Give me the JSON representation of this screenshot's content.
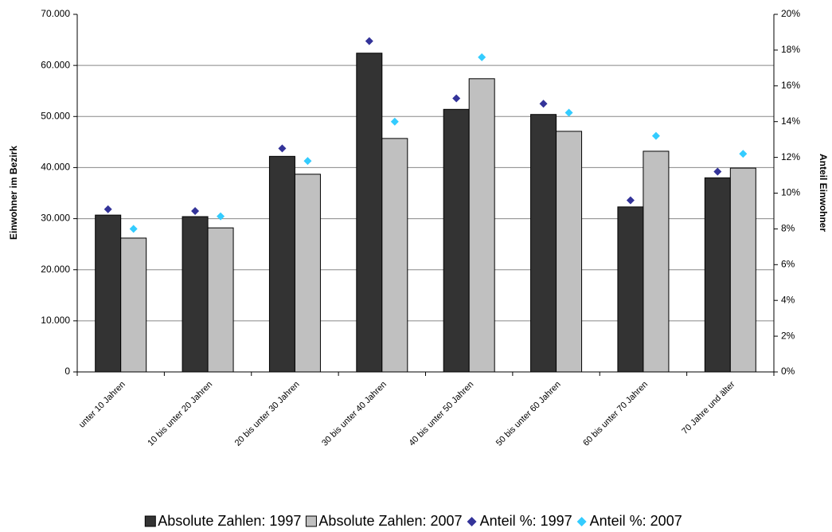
{
  "chart_data": {
    "type": "bar",
    "categories": [
      "unter 10 Jahren",
      "10 bis unter 20 Jahren",
      "20 bis unter 30 Jahren",
      "30 bis unter 40 Jahren",
      "40 bis unter 50 Jahren",
      "50 bis unter 60 Jahren",
      "60 bis unter 70 Jahren",
      "70 Jahre und älter"
    ],
    "series": [
      {
        "name": "Absolute Zahlen: 1997",
        "type": "bar",
        "color": "#333333",
        "values": [
          30700,
          30400,
          42200,
          62400,
          51400,
          50400,
          32300,
          38000
        ]
      },
      {
        "name": "Absolute Zahlen: 2007",
        "type": "bar",
        "color": "#c0c0c0",
        "values": [
          26200,
          28200,
          38700,
          45700,
          57400,
          47100,
          43200,
          39900
        ]
      },
      {
        "name": "Anteil %: 1997",
        "type": "scatter",
        "axis": "y2",
        "color": "#333399",
        "values": [
          9.1,
          9.0,
          12.5,
          18.5,
          15.3,
          15.0,
          9.6,
          11.2
        ]
      },
      {
        "name": "Anteil %: 2007",
        "type": "scatter",
        "axis": "y2",
        "color": "#33ccff",
        "values": [
          8.0,
          8.7,
          11.8,
          14.0,
          17.6,
          14.5,
          13.2,
          12.2
        ]
      }
    ],
    "y_label": "Einwohner im Bezirk",
    "y2_label": "Anteil Einwohner",
    "ylim": [
      0,
      70000
    ],
    "yticks": [
      0,
      {
        "value": 10000,
        "label": "10.000"
      },
      {
        "value": 20000,
        "label": "20.000"
      },
      {
        "value": 30000,
        "label": "30.000"
      },
      {
        "value": 40000,
        "label": "40.000"
      },
      {
        "value": 50000,
        "label": "50.000"
      },
      {
        "value": 60000,
        "label": "60.000"
      },
      {
        "value": 70000,
        "label": "70.000"
      }
    ],
    "y2lim": [
      0,
      20
    ],
    "y2ticks": [
      {
        "value": 0,
        "label": "0%"
      },
      {
        "value": 2,
        "label": "2%"
      },
      {
        "value": 4,
        "label": "4%"
      },
      {
        "value": 6,
        "label": "6%"
      },
      {
        "value": 8,
        "label": "8%"
      },
      {
        "value": 10,
        "label": "10%"
      },
      {
        "value": 12,
        "label": "12%"
      },
      {
        "value": 14,
        "label": "14%"
      },
      {
        "value": 16,
        "label": "16%"
      },
      {
        "value": 18,
        "label": "18%"
      },
      {
        "value": 20,
        "label": "20%"
      }
    ],
    "grid": true,
    "legend": "bottom"
  }
}
